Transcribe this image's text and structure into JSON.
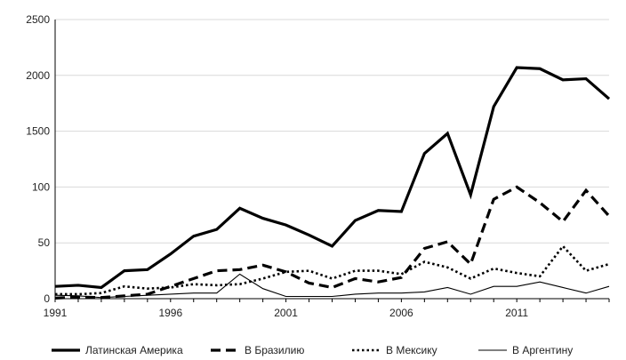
{
  "chart_data": {
    "type": "line",
    "title": "",
    "xlabel": "",
    "ylabel": "",
    "x": [
      1991,
      1992,
      1993,
      1994,
      1995,
      1996,
      1997,
      1998,
      1999,
      2000,
      2001,
      2002,
      2003,
      2004,
      2005,
      2006,
      2007,
      2008,
      2009,
      2010,
      2011,
      2012,
      2013,
      2014,
      2015
    ],
    "x_ticks": [
      "1991",
      "1996",
      "2001",
      "2006",
      "2011"
    ],
    "y_ticks": [
      "0",
      "50",
      "100",
      "1500",
      "2000",
      "2500"
    ],
    "ylim": [
      0,
      2500
    ],
    "grid": "horizontal",
    "legend_position": "bottom",
    "series": [
      {
        "name": "Латинская Америка",
        "style": "solid-thick",
        "color": "#000000",
        "values": [
          110,
          120,
          100,
          250,
          260,
          400,
          560,
          620,
          810,
          720,
          660,
          570,
          470,
          700,
          790,
          780,
          1300,
          1480,
          930,
          1720,
          2070,
          2060,
          1960,
          1970,
          1790
        ]
      },
      {
        "name": "В Бразилию",
        "style": "dashed",
        "color": "#000000",
        "values": [
          5,
          15,
          10,
          25,
          40,
          110,
          180,
          250,
          260,
          300,
          240,
          140,
          100,
          180,
          150,
          190,
          450,
          510,
          310,
          890,
          1000,
          860,
          690,
          970,
          740
        ]
      },
      {
        "name": "В Мексику",
        "style": "dotted",
        "color": "#000000",
        "values": [
          40,
          40,
          50,
          110,
          90,
          100,
          130,
          120,
          130,
          180,
          240,
          250,
          180,
          250,
          250,
          220,
          330,
          280,
          180,
          270,
          230,
          200,
          470,
          250,
          310
        ]
      },
      {
        "name": "В Аргентину",
        "style": "solid-thin",
        "color": "#000000",
        "values": [
          30,
          25,
          10,
          20,
          30,
          40,
          50,
          50,
          220,
          90,
          20,
          20,
          20,
          40,
          50,
          50,
          60,
          100,
          40,
          110,
          110,
          150,
          100,
          50,
          110
        ]
      }
    ]
  },
  "colors": {
    "grid": "#d9d9d9",
    "axis": "#000000",
    "text": "#222222"
  }
}
